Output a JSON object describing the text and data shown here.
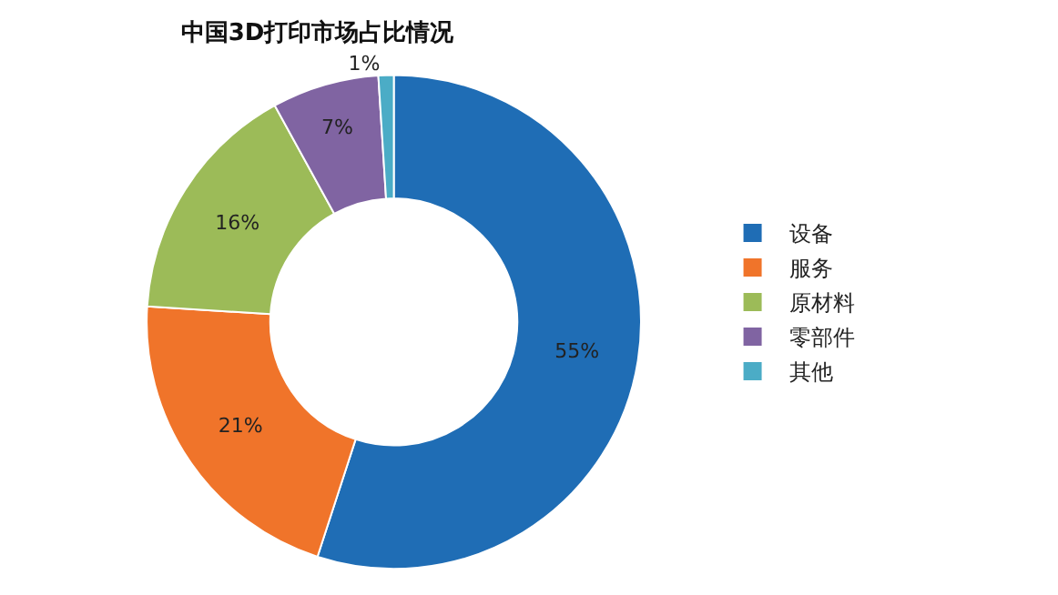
{
  "chart_data": {
    "type": "donut",
    "title": "中国3D打印市场占比情况",
    "categories": [
      "设备",
      "服务",
      "原材料",
      "零部件",
      "其他"
    ],
    "values": [
      55,
      21,
      16,
      7,
      1
    ],
    "colors": [
      "#1f6db5",
      "#f0742a",
      "#9cbb58",
      "#8064a2",
      "#4bacc6"
    ],
    "value_labels": [
      "55%",
      "21%",
      "16%",
      "7%",
      "1%"
    ],
    "legend": "right"
  }
}
